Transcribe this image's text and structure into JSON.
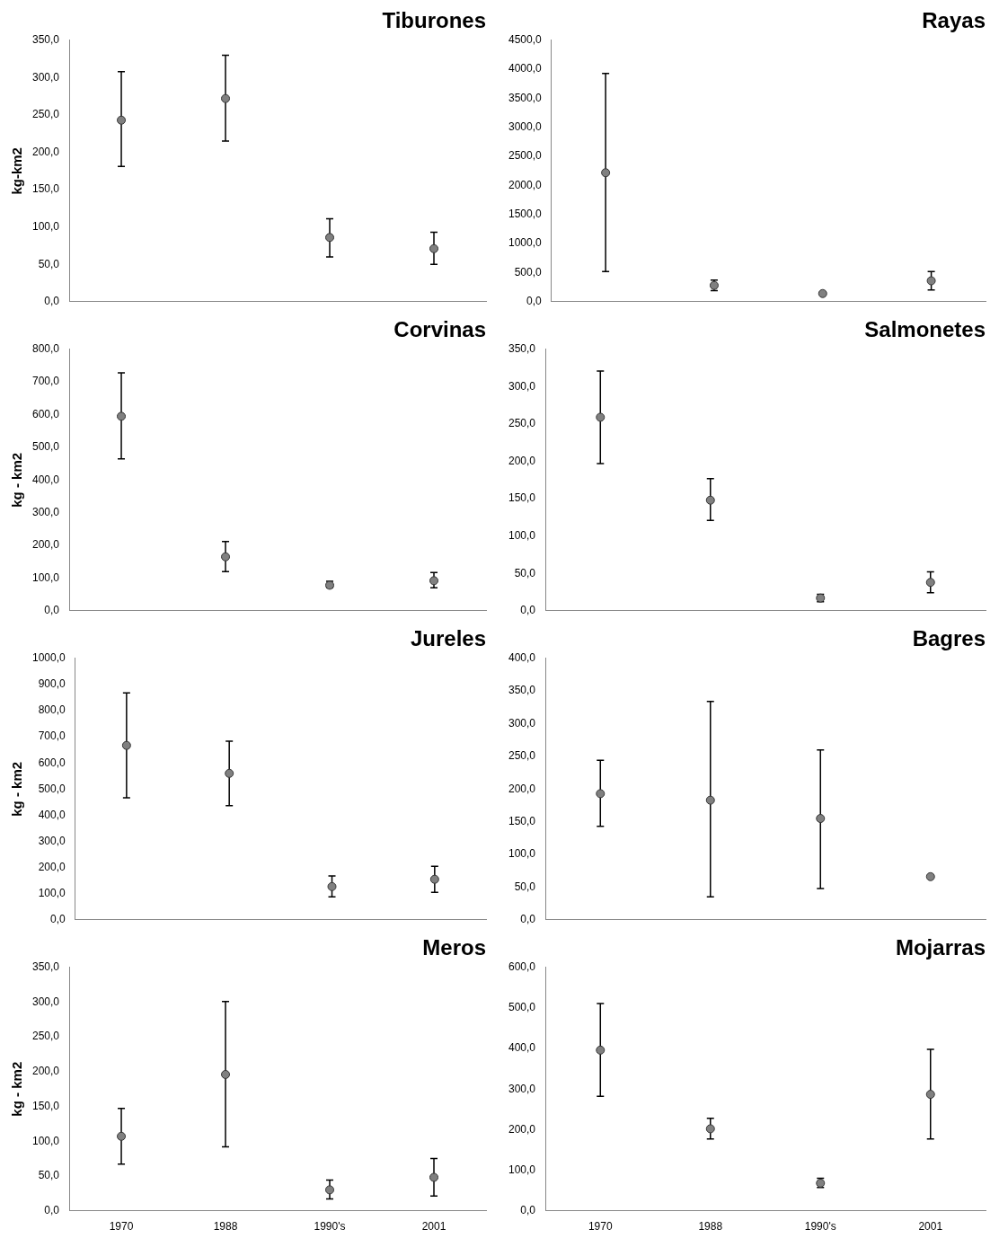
{
  "chart_data": [
    {
      "type": "scatter",
      "title": "Tiburones",
      "ylabel": "kg-km2",
      "categories": [
        null,
        null,
        null,
        null
      ],
      "tick_labels": "y",
      "values": [
        243,
        272,
        86,
        71
      ],
      "lower": [
        181,
        215,
        60,
        50
      ],
      "upper": [
        308,
        330,
        111,
        93
      ],
      "color": "#808080",
      "grid": false,
      "ylim": [
        0,
        350
      ],
      "yticks": [
        {
          "value": 0,
          "label": "0,0"
        },
        {
          "value": 50,
          "label": "50,0"
        },
        {
          "value": 100,
          "label": "100,0"
        },
        {
          "value": 150,
          "label": "150,0"
        },
        {
          "value": 200,
          "label": "200,0"
        },
        {
          "value": 250,
          "label": "250,0"
        },
        {
          "value": 300,
          "label": "300,0"
        },
        {
          "value": 350,
          "label": "350,0"
        }
      ]
    },
    {
      "type": "scatter",
      "title": "Rayas",
      "categories": [
        null,
        null,
        null,
        null
      ],
      "tick_labels": "y",
      "values": [
        2220,
        280,
        140,
        360
      ],
      "lower": [
        520,
        190,
        null,
        200
      ],
      "upper": [
        3930,
        370,
        null,
        520
      ],
      "color": "#808080",
      "grid": false,
      "ylim": [
        0,
        4500
      ],
      "yticks": [
        {
          "value": 0,
          "label": "0,0"
        },
        {
          "value": 500,
          "label": "500,0"
        },
        {
          "value": 1000,
          "label": "1000,0"
        },
        {
          "value": 1500,
          "label": "1500,0"
        },
        {
          "value": 2000,
          "label": "2000,0"
        },
        {
          "value": 2500,
          "label": "2500,0"
        },
        {
          "value": 3000,
          "label": "3000,0"
        },
        {
          "value": 3500,
          "label": "3500,0"
        },
        {
          "value": 4000,
          "label": "4000,0"
        },
        {
          "value": 4500,
          "label": "4500,0"
        }
      ]
    },
    {
      "type": "scatter",
      "title": "Corvinas",
      "ylabel": "kg - km2",
      "categories": [
        null,
        null,
        null,
        null
      ],
      "tick_labels": "y",
      "values": [
        595,
        165,
        78,
        92
      ],
      "lower": [
        465,
        120,
        70,
        70
      ],
      "upper": [
        728,
        212,
        90,
        117
      ],
      "color": "#808080",
      "grid": false,
      "ylim": [
        0,
        800
      ],
      "yticks": [
        {
          "value": 0,
          "label": "0,0"
        },
        {
          "value": 100,
          "label": "100,0"
        },
        {
          "value": 200,
          "label": "200,0"
        },
        {
          "value": 300,
          "label": "300,0"
        },
        {
          "value": 400,
          "label": "400,0"
        },
        {
          "value": 500,
          "label": "500,0"
        },
        {
          "value": 600,
          "label": "600,0"
        },
        {
          "value": 700,
          "label": "700,0"
        },
        {
          "value": 800,
          "label": "800,0"
        }
      ]
    },
    {
      "type": "scatter",
      "title": "Salmonetes",
      "categories": [
        null,
        null,
        null,
        null
      ],
      "tick_labels": "y",
      "values": [
        259,
        148,
        17,
        38
      ],
      "lower": [
        197,
        121,
        12,
        24
      ],
      "upper": [
        321,
        177,
        22,
        52
      ],
      "color": "#808080",
      "grid": false,
      "ylim": [
        0,
        350
      ],
      "yticks": [
        {
          "value": 0,
          "label": "0,0"
        },
        {
          "value": 50,
          "label": "50,0"
        },
        {
          "value": 100,
          "label": "100,0"
        },
        {
          "value": 150,
          "label": "150,0"
        },
        {
          "value": 200,
          "label": "200,0"
        },
        {
          "value": 250,
          "label": "250,0"
        },
        {
          "value": 300,
          "label": "300,0"
        },
        {
          "value": 350,
          "label": "350,0"
        }
      ]
    },
    {
      "type": "scatter",
      "title": "Jureles",
      "ylabel": "kg - km2",
      "categories": [
        null,
        null,
        null,
        null
      ],
      "tick_labels": "y",
      "values": [
        667,
        560,
        127,
        155
      ],
      "lower": [
        467,
        437,
        88,
        105
      ],
      "upper": [
        868,
        683,
        168,
        205
      ],
      "color": "#808080",
      "grid": false,
      "ylim": [
        0,
        1000
      ],
      "yticks": [
        {
          "value": 0,
          "label": "0,0"
        },
        {
          "value": 100,
          "label": "100,0"
        },
        {
          "value": 200,
          "label": "200,0"
        },
        {
          "value": 300,
          "label": "300,0"
        },
        {
          "value": 400,
          "label": "400,0"
        },
        {
          "value": 500,
          "label": "500,0"
        },
        {
          "value": 600,
          "label": "600,0"
        },
        {
          "value": 700,
          "label": "700,0"
        },
        {
          "value": 800,
          "label": "800,0"
        },
        {
          "value": 900,
          "label": "900,0"
        },
        {
          "value": 1000,
          "label": "1000,0"
        }
      ]
    },
    {
      "type": "scatter",
      "title": "Bagres",
      "categories": [
        null,
        null,
        null,
        null
      ],
      "tick_labels": "y",
      "values": [
        193,
        183,
        155,
        66
      ],
      "lower": [
        143,
        35,
        48,
        null
      ],
      "upper": [
        244,
        334,
        260,
        null
      ],
      "color": "#808080",
      "grid": false,
      "ylim": [
        0,
        400
      ],
      "yticks": [
        {
          "value": 0,
          "label": "0,0"
        },
        {
          "value": 50,
          "label": "50,0"
        },
        {
          "value": 100,
          "label": "100,0"
        },
        {
          "value": 150,
          "label": "150,0"
        },
        {
          "value": 200,
          "label": "200,0"
        },
        {
          "value": 250,
          "label": "250,0"
        },
        {
          "value": 300,
          "label": "300,0"
        },
        {
          "value": 350,
          "label": "350,0"
        },
        {
          "value": 400,
          "label": "400,0"
        }
      ]
    },
    {
      "type": "scatter",
      "title": "Meros",
      "ylabel": "kg - km2",
      "categories": [
        "1970",
        "1988",
        "1990's",
        "2001"
      ],
      "values": [
        107,
        196,
        30,
        48
      ],
      "lower": [
        67,
        92,
        17,
        21
      ],
      "upper": [
        147,
        301,
        44,
        75
      ],
      "color": "#808080",
      "grid": false,
      "ylim": [
        0,
        350
      ],
      "yticks": [
        {
          "value": 0,
          "label": "0,0"
        },
        {
          "value": 50,
          "label": "50,0"
        },
        {
          "value": 100,
          "label": "100,0"
        },
        {
          "value": 150,
          "label": "150,0"
        },
        {
          "value": 200,
          "label": "200,0"
        },
        {
          "value": 250,
          "label": "250,0"
        },
        {
          "value": 300,
          "label": "300,0"
        },
        {
          "value": 350,
          "label": "350,0"
        }
      ]
    },
    {
      "type": "scatter",
      "title": "Mojarras",
      "categories": [
        "1970",
        "1988",
        "1990's",
        "2001"
      ],
      "values": [
        396,
        202,
        68,
        287
      ],
      "lower": [
        282,
        177,
        57,
        177
      ],
      "upper": [
        511,
        228,
        80,
        398
      ],
      "color": "#808080",
      "grid": false,
      "ylim": [
        0,
        600
      ],
      "yticks": [
        {
          "value": 0,
          "label": "0,0"
        },
        {
          "value": 100,
          "label": "100,0"
        },
        {
          "value": 200,
          "label": "200,0"
        },
        {
          "value": 300,
          "label": "300,0"
        },
        {
          "value": 400,
          "label": "400,0"
        },
        {
          "value": 500,
          "label": "500,0"
        },
        {
          "value": 600,
          "label": "600,0"
        }
      ]
    }
  ]
}
